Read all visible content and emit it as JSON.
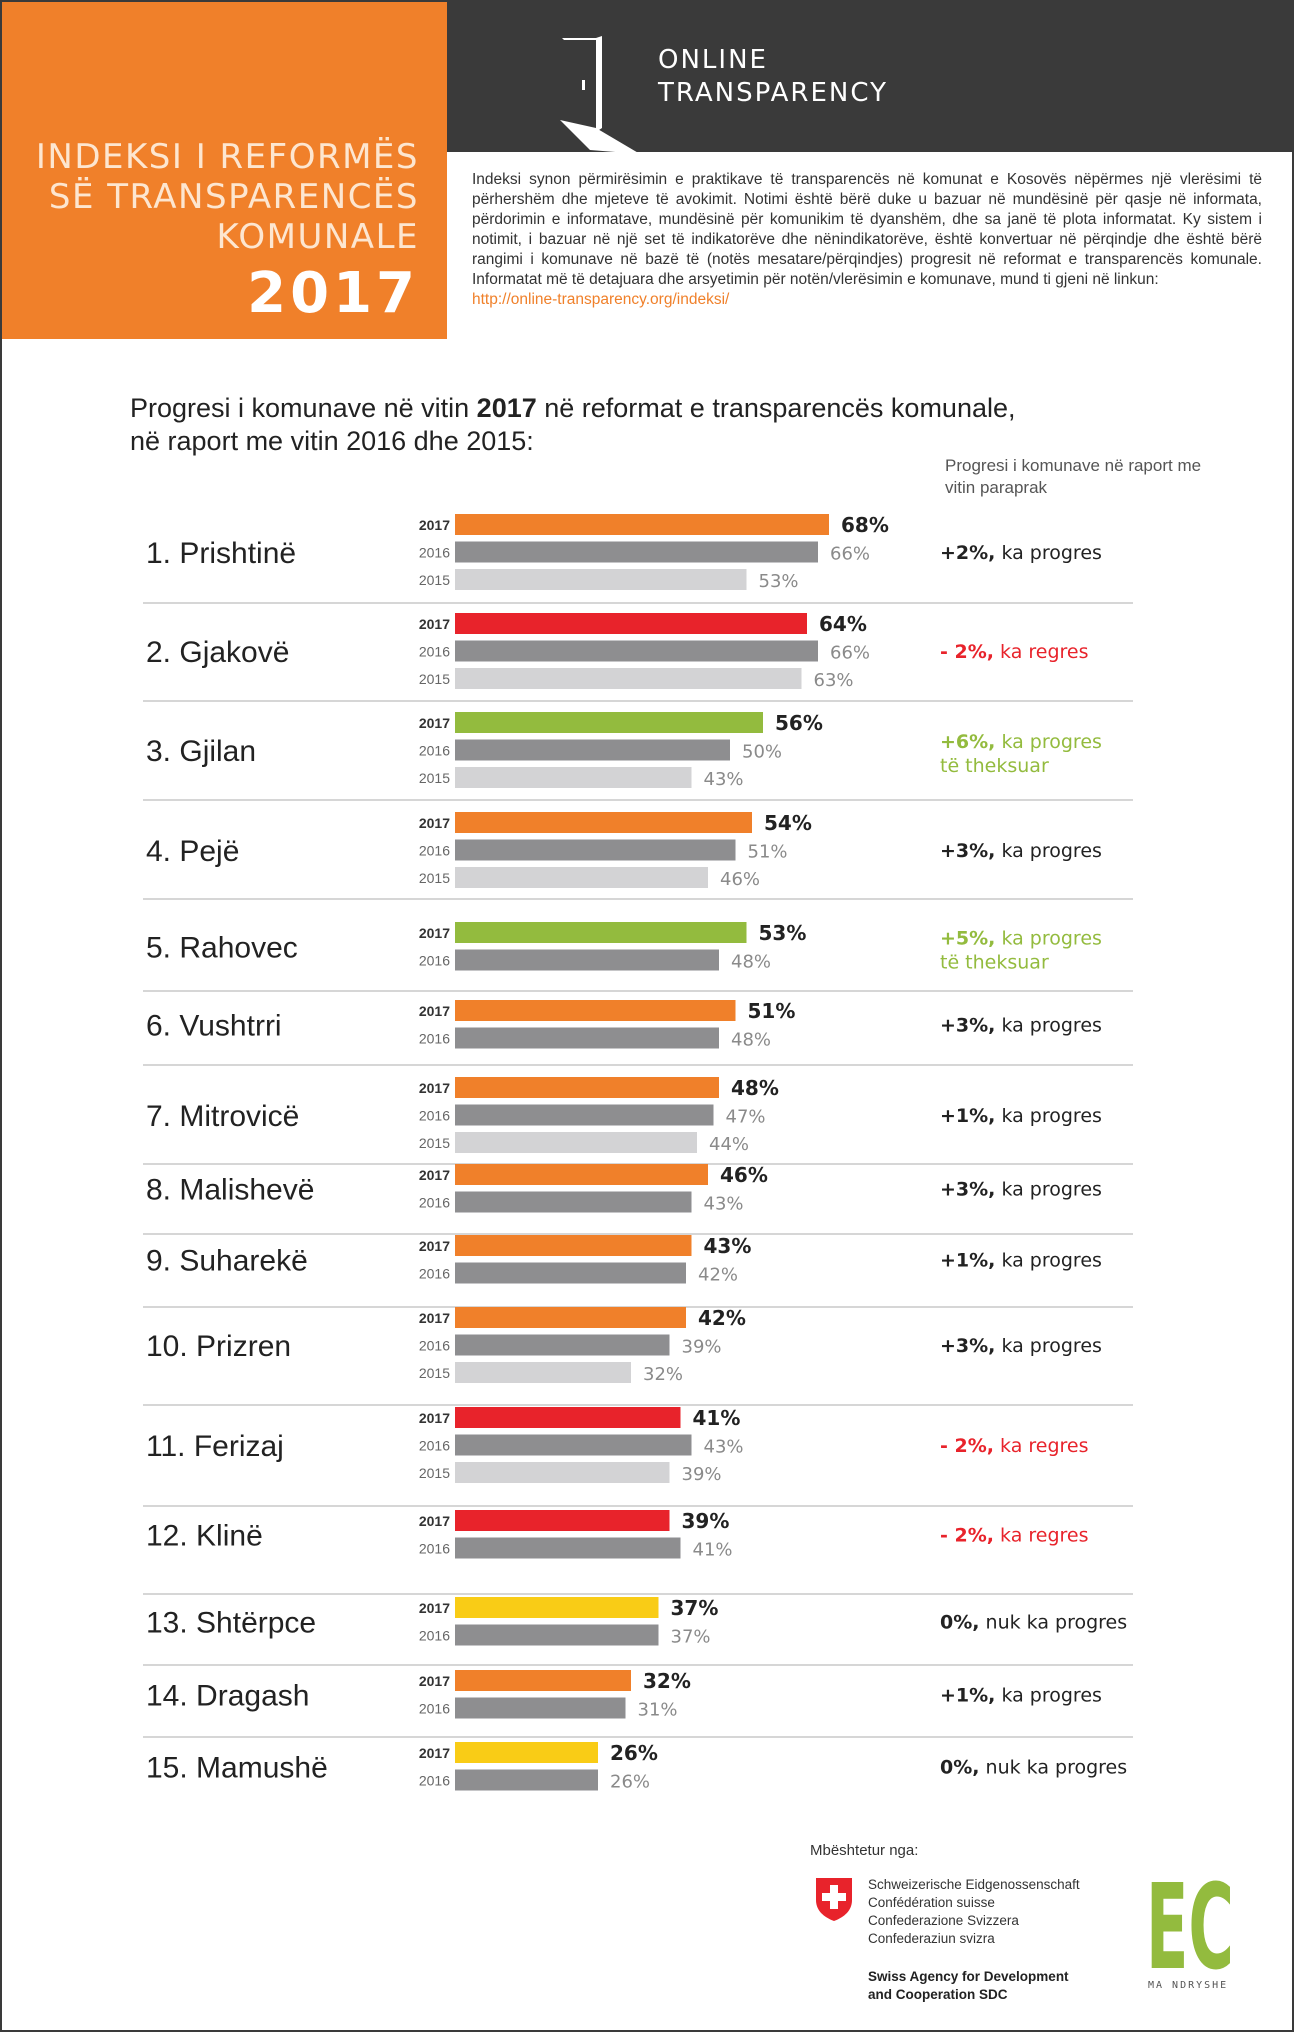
{
  "header": {
    "title_lines": [
      "INDEKSI I REFORMËS",
      "SË TRANSPARENCËS",
      "KOMUNALE"
    ],
    "year": "2017",
    "brand_lines": [
      "ONLINE",
      "TRANSPARENCY"
    ],
    "intro": "Indeksi synon përmirësimin e praktikave të transparencës në komunat e Kosovës nëpërmes një vlerësimi të përhershëm dhe mjeteve të avokimit. Notimi është bërë duke u bazuar në mundësinë për qasje në informata, përdorimin e informatave, mundësinë për komunikim të dyanshëm, dhe sa janë të plota informatat. Ky sistem i notimit, i bazuar në një set të indikatorëve dhe nënindikatorëve, është konvertuar në përqindje dhe është bërë rangimi i komunave në bazë të (notës mesatare/përqindjes) progresit në reformat e transparencës komunale. Informatat më të detajuara dhe arsyetimin për notën/vlerësimin e komunave, mund ti gjeni në linkun:",
    "link": "http://online-transparency.org/indeksi/"
  },
  "chart_heading": {
    "prefix": "Progresi i komunave në vitin ",
    "bold": "2017",
    "suffix": " në reformat e transparencës komunale,",
    "line2": "në raport me vitin 2016 dhe 2015:"
  },
  "progress_header": "Progresi i komunave në raport me vitin paraprak",
  "colors": {
    "orange": "#f0802a",
    "red": "#e8232b",
    "green": "#93bb3e",
    "yellow": "#f9cc16",
    "gray2016": "#8e8e90",
    "gray2015": "#d3d3d5",
    "dark": "#3a3a3a"
  },
  "chart_data": {
    "type": "bar",
    "orientation": "horizontal",
    "unit": "%",
    "series_names": [
      "2017",
      "2016",
      "2015"
    ],
    "municipalities": [
      {
        "rank": "1.",
        "name": "Prishtinë",
        "v2017": 68,
        "v2016": 66,
        "v2015": 53,
        "color": "orange",
        "change": "+2%,",
        "note": " ka progres",
        "note2": "",
        "tone": "neutral"
      },
      {
        "rank": "2.",
        "name": "Gjakovë",
        "v2017": 64,
        "v2016": 66,
        "v2015": 63,
        "color": "red",
        "change": "- 2%,",
        "note": " ka regres",
        "note2": "",
        "tone": "red"
      },
      {
        "rank": "3.",
        "name": "Gjilan",
        "v2017": 56,
        "v2016": 50,
        "v2015": 43,
        "color": "green",
        "change": "+6%,",
        "note": " ka progres",
        "note2": "të theksuar",
        "tone": "green"
      },
      {
        "rank": "4.",
        "name": "Pejë",
        "v2017": 54,
        "v2016": 51,
        "v2015": 46,
        "color": "orange",
        "change": "+3%,",
        "note": " ka progres",
        "note2": "",
        "tone": "neutral"
      },
      {
        "rank": "5.",
        "name": "Rahovec",
        "v2017": 53,
        "v2016": 48,
        "v2015": null,
        "color": "green",
        "change": "+5%,",
        "note": " ka progres",
        "note2": "të theksuar",
        "tone": "green"
      },
      {
        "rank": "6.",
        "name": "Vushtrri",
        "v2017": 51,
        "v2016": 48,
        "v2015": null,
        "color": "orange",
        "change": "+3%,",
        "note": " ka progres",
        "note2": "",
        "tone": "neutral"
      },
      {
        "rank": "7.",
        "name": "Mitrovicë",
        "v2017": 48,
        "v2016": 47,
        "v2015": 44,
        "color": "orange",
        "change": "+1%,",
        "note": " ka progres",
        "note2": "",
        "tone": "neutral"
      },
      {
        "rank": "8.",
        "name": "Malishevë",
        "v2017": 46,
        "v2016": 43,
        "v2015": null,
        "color": "orange",
        "change": "+3%,",
        "note": " ka progres",
        "note2": "",
        "tone": "neutral"
      },
      {
        "rank": "9.",
        "name": "Suharekë",
        "v2017": 43,
        "v2016": 42,
        "v2015": null,
        "color": "orange",
        "change": "+1%,",
        "note": " ka progres",
        "note2": "",
        "tone": "neutral"
      },
      {
        "rank": "10.",
        "name": "Prizren",
        "v2017": 42,
        "v2016": 39,
        "v2015": 32,
        "color": "orange",
        "change": "+3%,",
        "note": " ka progres",
        "note2": "",
        "tone": "neutral"
      },
      {
        "rank": "11.",
        "name": "Ferizaj",
        "v2017": 41,
        "v2016": 43,
        "v2015": 39,
        "color": "red",
        "change": "- 2%,",
        "note": " ka regres",
        "note2": "",
        "tone": "red"
      },
      {
        "rank": "12.",
        "name": "Klinë",
        "v2017": 39,
        "v2016": 41,
        "v2015": null,
        "color": "red",
        "change": "- 2%,",
        "note": " ka regres",
        "note2": "",
        "tone": "red"
      },
      {
        "rank": "13.",
        "name": "Shtërpce",
        "v2017": 37,
        "v2016": 37,
        "v2015": null,
        "color": "yellow",
        "change": "0%,",
        "note": " nuk ka progres",
        "note2": "",
        "tone": "neutral"
      },
      {
        "rank": "14.",
        "name": "Dragash",
        "v2017": 32,
        "v2016": 31,
        "v2015": null,
        "color": "orange",
        "change": "+1%,",
        "note": " ka progres",
        "note2": "",
        "tone": "neutral"
      },
      {
        "rank": "15.",
        "name": "Mamushë",
        "v2017": 26,
        "v2016": 26,
        "v2015": null,
        "color": "yellow",
        "change": "0%,",
        "note": " nuk ka progres",
        "note2": "",
        "tone": "neutral"
      }
    ]
  },
  "footer": {
    "support_label": "Mbështetur nga:",
    "swiss_names": [
      "Schweizerische Eidgenossenschaft",
      "Confédération suisse",
      "Confederazione Svizzera",
      "Confederaziun svizra"
    ],
    "sdc_lines": [
      "Swiss Agency for Development",
      "and Cooperation SDC"
    ],
    "ec_logo_text": "EC",
    "ec_caption": "MA NDRYSHE"
  }
}
